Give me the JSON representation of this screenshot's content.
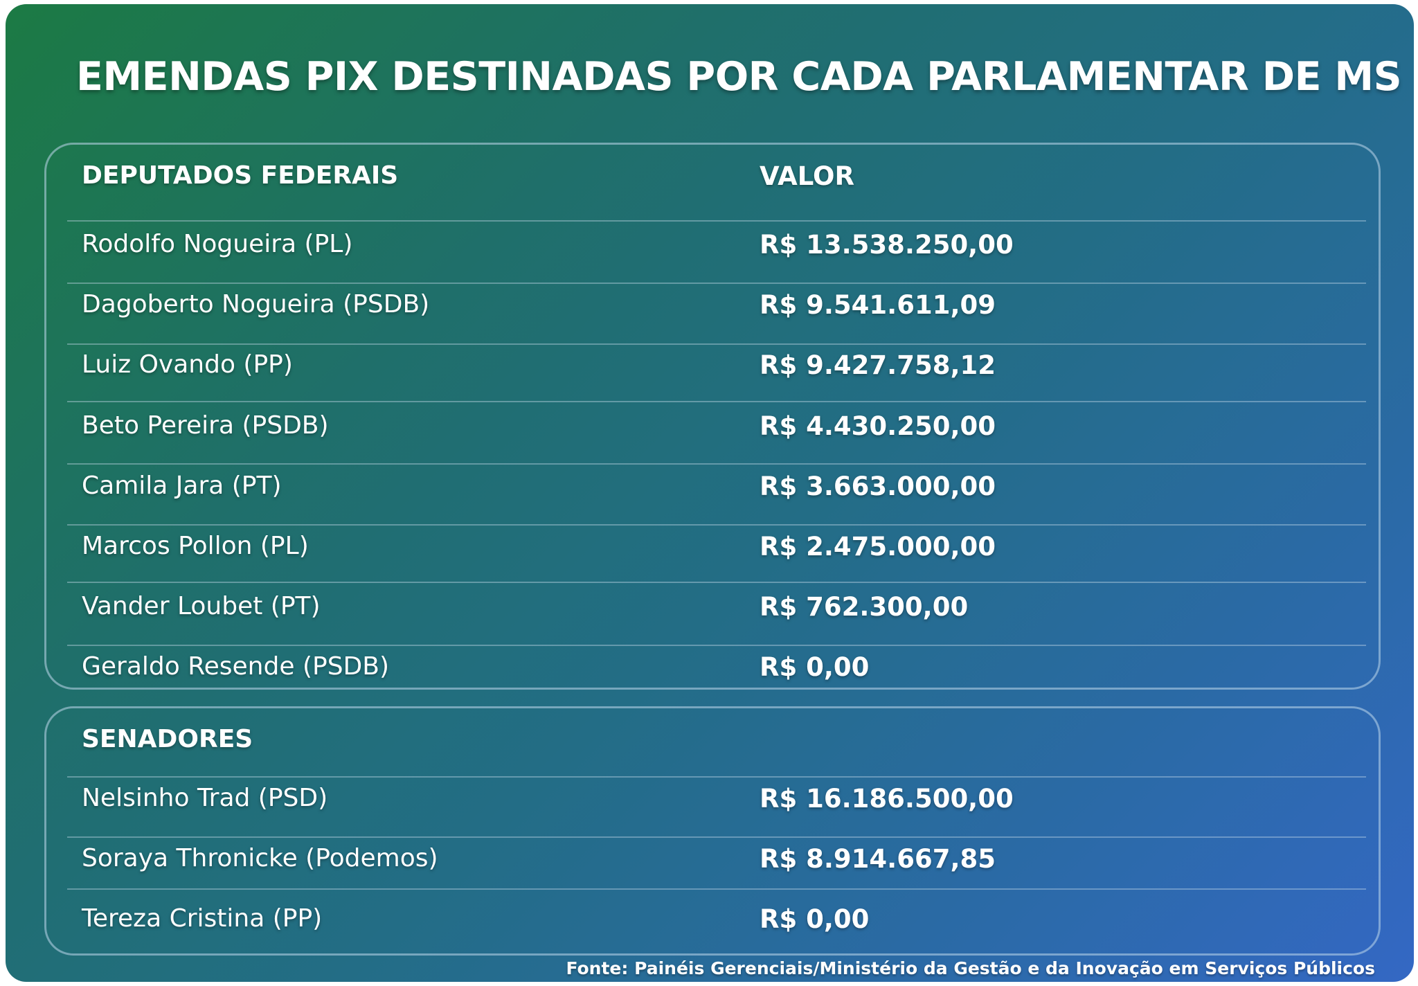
{
  "title": "EMENDAS PIX DESTINADAS POR CADA PARLAMENTAR DE MS",
  "deputados": {
    "header_name": "DEPUTADOS FEDERAIS",
    "header_value": "VALOR",
    "rows": [
      {
        "name": "Rodolfo Nogueira (PL)",
        "value": "R$ 13.538.250,00"
      },
      {
        "name": "Dagoberto Nogueira (PSDB)",
        "value": "R$ 9.541.611,09"
      },
      {
        "name": "Luiz Ovando (PP)",
        "value": "R$ 9.427.758,12"
      },
      {
        "name": "Beto Pereira (PSDB)",
        "value": "R$ 4.430.250,00"
      },
      {
        "name": "Camila Jara (PT)",
        "value": "R$ 3.663.000,00"
      },
      {
        "name": "Marcos Pollon (PL)",
        "value": "R$ 2.475.000,00"
      },
      {
        "name": "Vander Loubet (PT)",
        "value": "R$ 762.300,00"
      },
      {
        "name": "Geraldo Resende (PSDB)",
        "value": "R$ 0,00"
      }
    ]
  },
  "senadores": {
    "header_name": "SENADORES",
    "rows": [
      {
        "name": "Nelsinho Trad (PSD)",
        "value": "R$ 16.186.500,00"
      },
      {
        "name": "Soraya Thronicke (Podemos)",
        "value": "R$ 8.914.667,85"
      },
      {
        "name": "Tereza Cristina (PP)",
        "value": "R$ 0,00"
      }
    ]
  },
  "source": "Fonte: Painéis Gerenciais/Ministério da Gestão e da Inovação em Serviços Públicos",
  "colors": {
    "gradient_start": "#1c7a44",
    "gradient_end": "#3468c4",
    "text": "#ffffff"
  }
}
